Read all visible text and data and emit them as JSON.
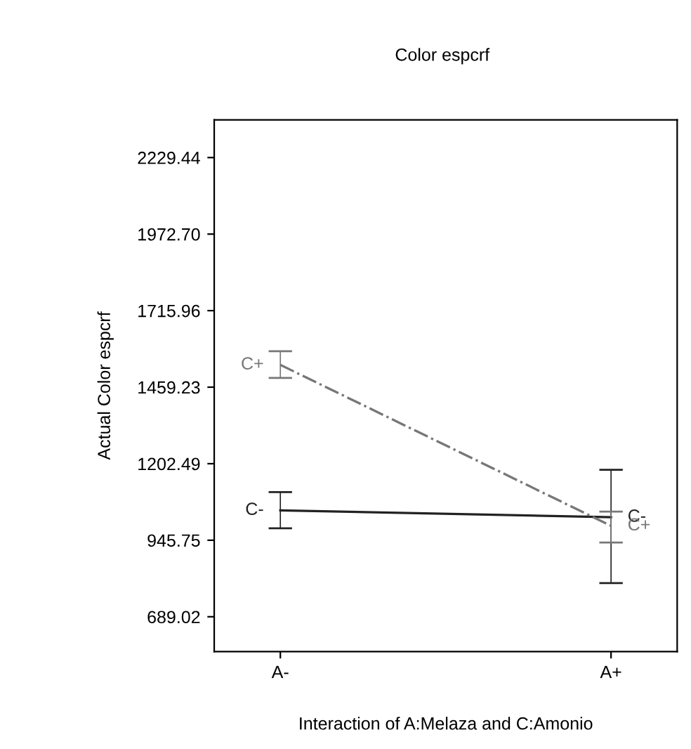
{
  "chart_data": {
    "type": "line",
    "title": "Color espcrf",
    "xlabel": "Interaction of A:Melaza and C:Amonio",
    "ylabel": "Actual Color espcrf",
    "categories": [
      "A-",
      "A+"
    ],
    "series": [
      {
        "name": "C-",
        "color": "#222222",
        "values": [
          1046,
          1023
        ],
        "errors": [
          [
            986,
            1107
          ],
          [
            802,
            1182
          ]
        ],
        "line_style": "solid"
      },
      {
        "name": "C+",
        "color": "#777777",
        "values": [
          1534,
          994
        ],
        "errors": [
          [
            1490,
            1580
          ],
          [
            938,
            1042
          ]
        ],
        "line_style": "dashed"
      }
    ],
    "ylim": [
      572,
      2356
    ],
    "yticks": [
      {
        "value": 689.02,
        "label": "689.02"
      },
      {
        "value": 945.75,
        "label": "945.75"
      },
      {
        "value": 1202.49,
        "label": "1202.49"
      },
      {
        "value": 1459.23,
        "label": "1459.23"
      },
      {
        "value": 1715.96,
        "label": "1715.96"
      },
      {
        "value": 1972.7,
        "label": "1972.70"
      },
      {
        "value": 2229.44,
        "label": "2229.44"
      }
    ],
    "grid": false,
    "legend": false,
    "marker": "none"
  }
}
